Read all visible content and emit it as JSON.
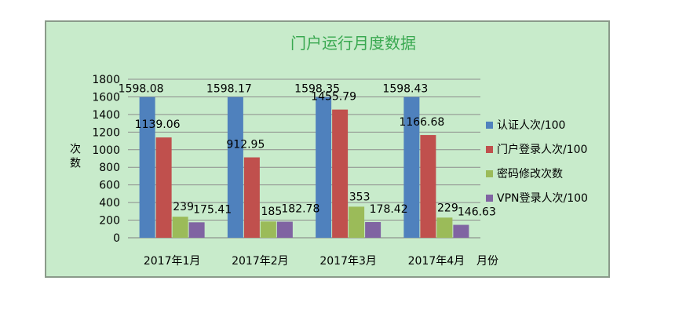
{
  "chart_data": {
    "type": "bar",
    "title": "门户运行月度数据",
    "ylabel": "次数",
    "xlabel": "月份",
    "ylim": [
      0,
      1800
    ],
    "yticks": [
      0,
      200,
      400,
      600,
      800,
      1000,
      1200,
      1400,
      1600,
      1800
    ],
    "grid": true,
    "legend_position": "right",
    "categories": [
      "2017年1月",
      "2017年2月",
      "2017年3月",
      "2017年4月"
    ],
    "series": [
      {
        "name": "认证人次/100",
        "color": "#4f81bd",
        "values": [
          1598.08,
          1598.17,
          1598.35,
          1598.43
        ]
      },
      {
        "name": "门户登录人次/100",
        "color": "#c0504d",
        "values": [
          1139.06,
          912.95,
          1455.79,
          1166.68
        ]
      },
      {
        "name": "密码修改次数",
        "color": "#9bbb59",
        "values": [
          239,
          185,
          353,
          229
        ]
      },
      {
        "name": "VPN登录人次/100",
        "color": "#8064a2",
        "values": [
          175.41,
          182.78,
          178.42,
          146.63
        ]
      }
    ]
  }
}
